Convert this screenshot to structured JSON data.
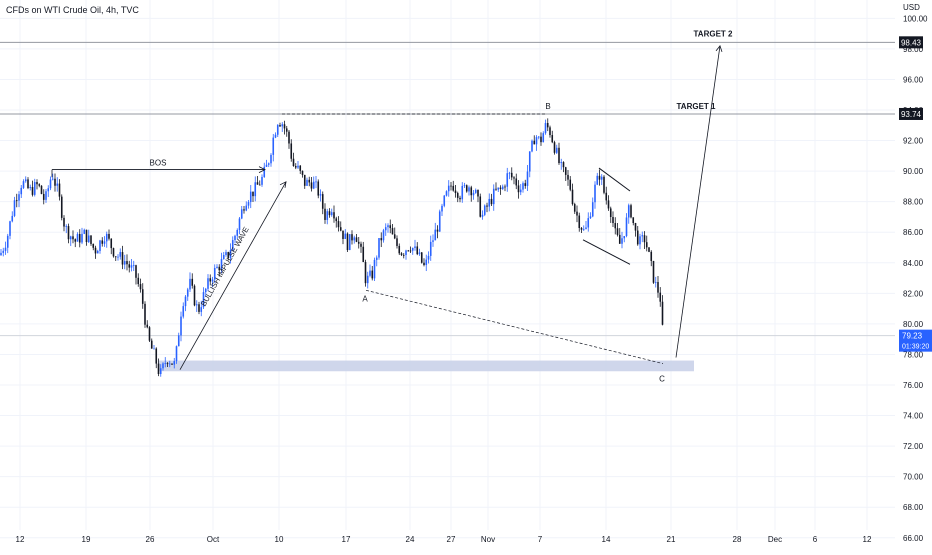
{
  "header": {
    "title": "CFDs on WTI Crude Oil, 4h, TVC"
  },
  "colors": {
    "up": "#2962ff",
    "down": "#131722",
    "grid": "#f0f3fa",
    "axis_text": "#131722",
    "zone": "#c7cfe8",
    "line": "#131722",
    "hline": "#9598a1",
    "price_bg": "#2962ff"
  },
  "chart_data": {
    "type": "candlestick",
    "currency": "USD",
    "ylim": [
      65.2,
      101.2
    ],
    "y_ticks": [
      "66.00",
      "68.00",
      "70.00",
      "72.00",
      "74.00",
      "76.00",
      "78.00",
      "80.00",
      "82.00",
      "84.00",
      "86.00",
      "88.00",
      "90.00",
      "92.00",
      "94.00",
      "96.00",
      "98.00",
      "100.00"
    ],
    "x_ticks": [
      "12",
      "19",
      "26",
      "Oct",
      "10",
      "17",
      "24",
      "27",
      "Nov",
      "7",
      "14",
      "21",
      "28",
      "Dec",
      "6",
      "12"
    ],
    "price_labels": {
      "level_1": "98.43",
      "level_2": "93.74",
      "current_price": "79.23",
      "countdown": "01:39:20"
    },
    "annotations": {
      "bos": "BOS",
      "wave": "BULLISH IMPULSE WAVE",
      "point_a": "A",
      "point_b": "B",
      "point_c": "C",
      "target_1": "TARGET 1",
      "target_2": "TARGET 2"
    },
    "price_path": [
      [
        0,
        84.5
      ],
      [
        7,
        85.6
      ],
      [
        15,
        88.2
      ],
      [
        22,
        89.3
      ],
      [
        30,
        88.7
      ],
      [
        38,
        89.1
      ],
      [
        45,
        88.0
      ],
      [
        52,
        89.9
      ],
      [
        58,
        88.6
      ],
      [
        65,
        86.3
      ],
      [
        75,
        85.4
      ],
      [
        85,
        85.9
      ],
      [
        95,
        84.8
      ],
      [
        105,
        85.9
      ],
      [
        115,
        84.6
      ],
      [
        125,
        84.1
      ],
      [
        135,
        83.3
      ],
      [
        142,
        81.7
      ],
      [
        148,
        79.0
      ],
      [
        155,
        77.8
      ],
      [
        160,
        76.6
      ],
      [
        167,
        77.8
      ],
      [
        175,
        77.3
      ],
      [
        182,
        81.4
      ],
      [
        190,
        82.6
      ],
      [
        198,
        80.8
      ],
      [
        205,
        82.1
      ],
      [
        212,
        83.2
      ],
      [
        220,
        83.9
      ],
      [
        228,
        84.5
      ],
      [
        235,
        85.8
      ],
      [
        245,
        88.1
      ],
      [
        255,
        88.8
      ],
      [
        262,
        89.5
      ],
      [
        268,
        90.5
      ],
      [
        273,
        92.1
      ],
      [
        278,
        93.4
      ],
      [
        283,
        93.1
      ],
      [
        288,
        92.2
      ],
      [
        293,
        90.4
      ],
      [
        298,
        90.1
      ],
      [
        305,
        89.2
      ],
      [
        312,
        89.3
      ],
      [
        318,
        88.7
      ],
      [
        325,
        87.1
      ],
      [
        332,
        87.7
      ],
      [
        340,
        86.3
      ],
      [
        348,
        85.2
      ],
      [
        355,
        86.1
      ],
      [
        362,
        84.4
      ],
      [
        366,
        82.8
      ],
      [
        372,
        83.2
      ],
      [
        380,
        85.5
      ],
      [
        388,
        86.4
      ],
      [
        395,
        85.3
      ],
      [
        402,
        84.7
      ],
      [
        410,
        85.2
      ],
      [
        418,
        84.5
      ],
      [
        425,
        83.6
      ],
      [
        430,
        85.0
      ],
      [
        438,
        86.5
      ],
      [
        445,
        88.2
      ],
      [
        452,
        89.2
      ],
      [
        460,
        88.5
      ],
      [
        468,
        89.1
      ],
      [
        475,
        88.6
      ],
      [
        482,
        87.0
      ],
      [
        488,
        87.8
      ],
      [
        495,
        88.6
      ],
      [
        502,
        88.8
      ],
      [
        508,
        89.8
      ],
      [
        515,
        89.4
      ],
      [
        520,
        88.8
      ],
      [
        526,
        89.4
      ],
      [
        530,
        91.0
      ],
      [
        535,
        92.4
      ],
      [
        540,
        91.9
      ],
      [
        546,
        93.0
      ],
      [
        550,
        92.6
      ],
      [
        556,
        91.3
      ],
      [
        560,
        90.3
      ],
      [
        565,
        89.7
      ],
      [
        570,
        89.0
      ],
      [
        575,
        87.4
      ],
      [
        580,
        86.6
      ],
      [
        585,
        85.9
      ],
      [
        590,
        87.3
      ],
      [
        595,
        88.9
      ],
      [
        600,
        89.9
      ],
      [
        605,
        88.3
      ],
      [
        610,
        87.7
      ],
      [
        615,
        85.9
      ],
      [
        620,
        85.2
      ],
      [
        625,
        86.3
      ],
      [
        630,
        87.7
      ],
      [
        635,
        86.0
      ],
      [
        640,
        85.3
      ],
      [
        645,
        85.6
      ],
      [
        650,
        84.1
      ],
      [
        655,
        82.6
      ],
      [
        660,
        81.9
      ],
      [
        663,
        79.1
      ]
    ]
  }
}
